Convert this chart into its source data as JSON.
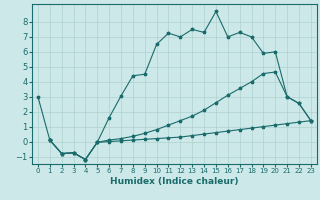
{
  "xlabel": "Humidex (Indice chaleur)",
  "bg_color": "#cde8e8",
  "grid_color": "#b0d0d0",
  "line_color": "#1a6b6b",
  "xlim": [
    -0.5,
    23.5
  ],
  "ylim": [
    -1.5,
    9.2
  ],
  "yticks": [
    -1,
    0,
    1,
    2,
    3,
    4,
    5,
    6,
    7,
    8
  ],
  "xticks": [
    0,
    1,
    2,
    3,
    4,
    5,
    6,
    7,
    8,
    9,
    10,
    11,
    12,
    13,
    14,
    15,
    16,
    17,
    18,
    19,
    20,
    21,
    22,
    23
  ],
  "line1_x": [
    0,
    1
  ],
  "line1_y": [
    3.0,
    0.1
  ],
  "line2_x": [
    1,
    2,
    3,
    4,
    5,
    6,
    7,
    8,
    9,
    10,
    11,
    12,
    13,
    14,
    15,
    16,
    17,
    18,
    19,
    20,
    21,
    22,
    23
  ],
  "line2_y": [
    0.1,
    -0.8,
    -0.75,
    -1.2,
    -0.05,
    0.0,
    0.05,
    0.1,
    0.15,
    0.2,
    0.25,
    0.3,
    0.4,
    0.5,
    0.6,
    0.7,
    0.8,
    0.9,
    1.0,
    1.1,
    1.2,
    1.3,
    1.4
  ],
  "line3_x": [
    1,
    2,
    3,
    4,
    5,
    6,
    7,
    8,
    9,
    10,
    11,
    12,
    13,
    14,
    15,
    16,
    17,
    18,
    19,
    20,
    21,
    22,
    23
  ],
  "line3_y": [
    0.1,
    -0.8,
    -0.75,
    -1.2,
    -0.05,
    0.1,
    0.2,
    0.35,
    0.55,
    0.8,
    1.1,
    1.4,
    1.7,
    2.1,
    2.6,
    3.1,
    3.55,
    4.0,
    4.55,
    4.65,
    3.0,
    2.55,
    1.4
  ],
  "line4_x": [
    1,
    2,
    3,
    4,
    5,
    6,
    7,
    8,
    9,
    10,
    11,
    12,
    13,
    14,
    15,
    16,
    17,
    18,
    19,
    20,
    21,
    22,
    23
  ],
  "line4_y": [
    0.1,
    -0.8,
    -0.75,
    -1.2,
    -0.05,
    1.6,
    3.05,
    4.4,
    4.5,
    6.5,
    7.25,
    7.0,
    7.5,
    7.3,
    8.7,
    7.0,
    7.3,
    7.0,
    5.9,
    6.0,
    3.0,
    2.55,
    1.4
  ]
}
